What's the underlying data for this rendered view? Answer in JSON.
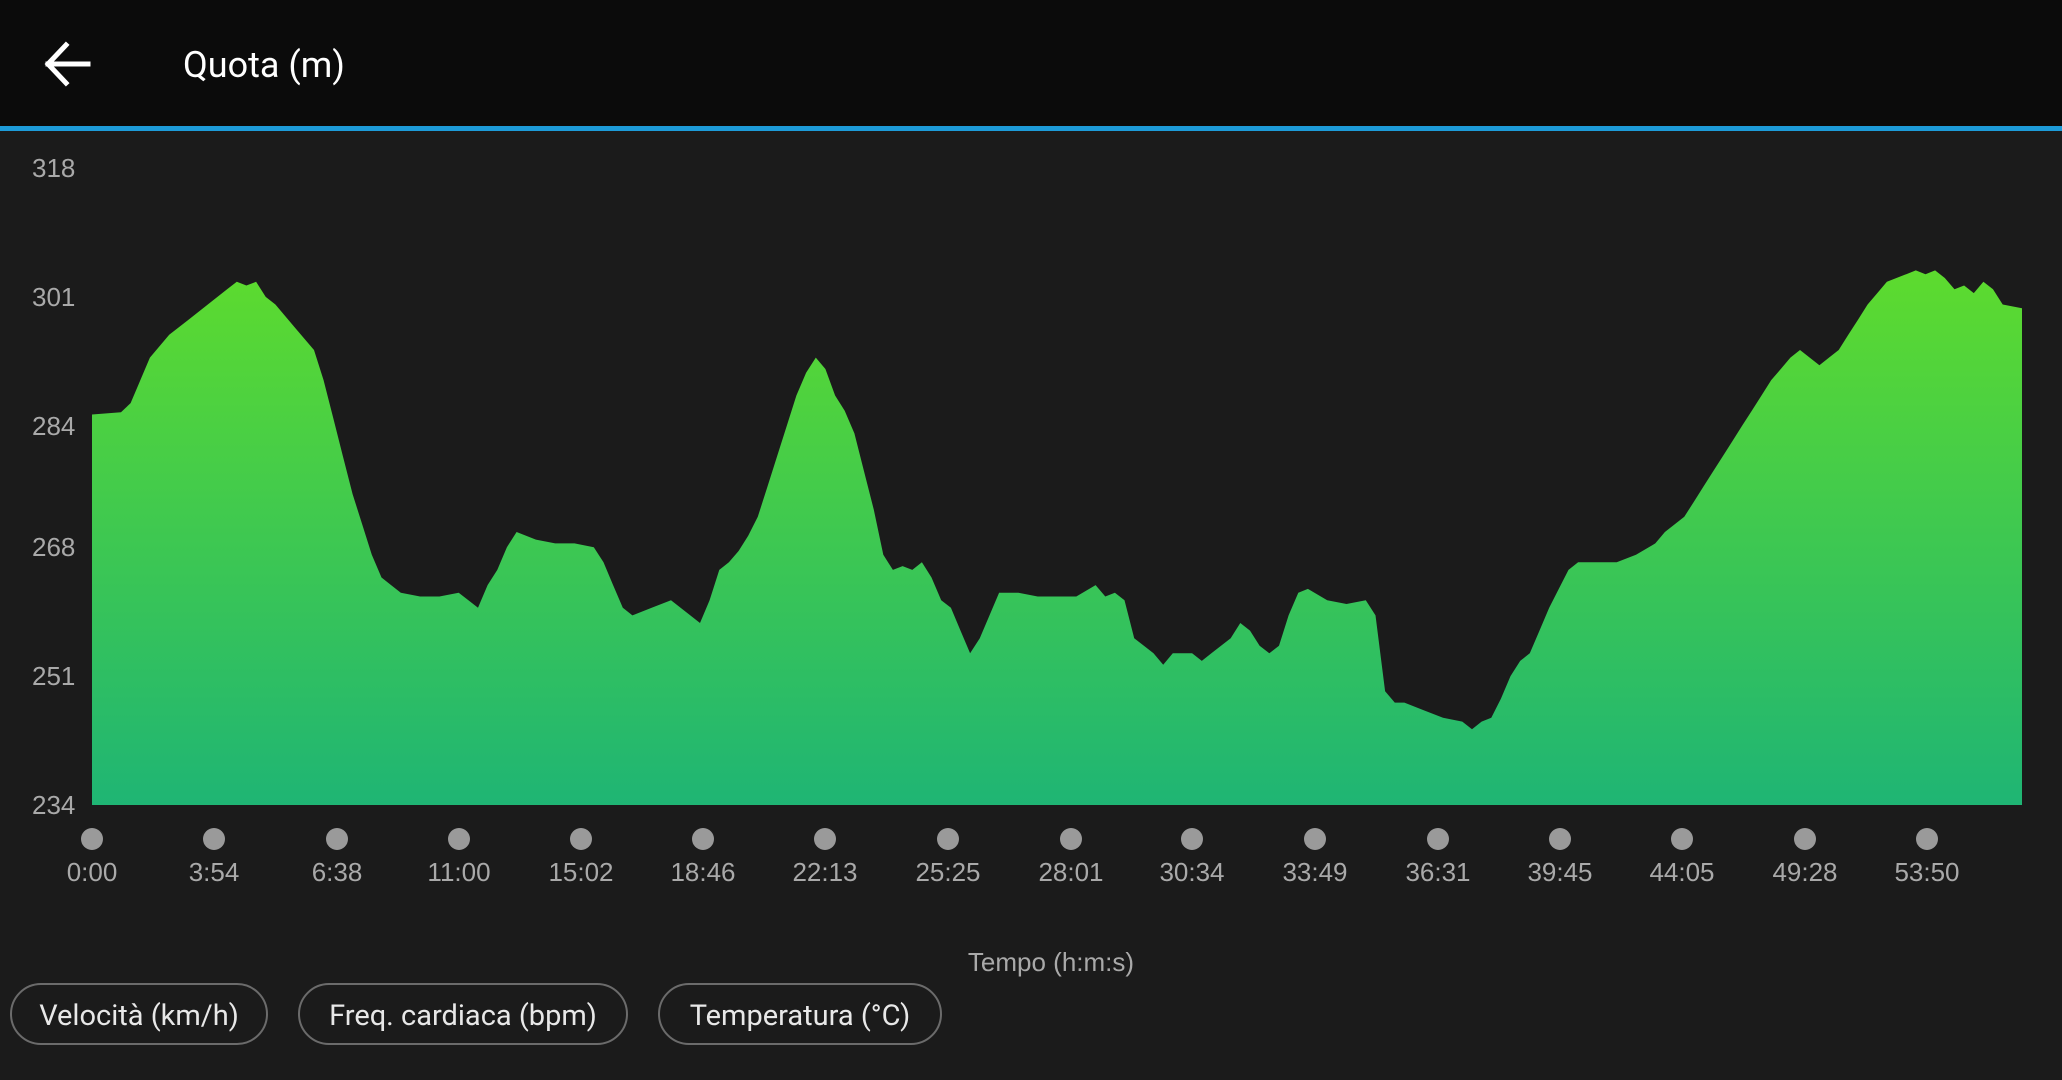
{
  "header": {
    "title": "Quota (m)",
    "back_icon": "arrow-left-icon"
  },
  "colors": {
    "header_bg": "#0b0b0b",
    "accent": "#1d9bd8",
    "background": "#1b1b1b",
    "area_top": "#5ddb2e",
    "area_bottom": "#1fb574",
    "marker": "#9a9a9a",
    "axis_text": "#a9a9a9"
  },
  "chart_data": {
    "type": "area",
    "xlabel": "Tempo (h:m:s)",
    "ylabel": "",
    "ylim": [
      234,
      318
    ],
    "yticks": [
      "318",
      "301",
      "284",
      "268",
      "251",
      "234"
    ],
    "xticks": [
      "0:00",
      "3:54",
      "6:38",
      "11:00",
      "15:02",
      "18:46",
      "22:13",
      "25:25",
      "28:01",
      "30:34",
      "33:49",
      "36:31",
      "39:45",
      "44:05",
      "49:28",
      "53:50"
    ],
    "grid": false,
    "series": [
      {
        "name": "",
        "points": [
          [
            0,
            285.5
          ],
          [
            0.015,
            285.8
          ],
          [
            0.02,
            287
          ],
          [
            0.025,
            290
          ],
          [
            0.03,
            293
          ],
          [
            0.04,
            296
          ],
          [
            0.05,
            298
          ],
          [
            0.06,
            300
          ],
          [
            0.07,
            302
          ],
          [
            0.075,
            303
          ],
          [
            0.08,
            302.5
          ],
          [
            0.085,
            303
          ],
          [
            0.09,
            301
          ],
          [
            0.095,
            300
          ],
          [
            0.1,
            298.5
          ],
          [
            0.105,
            297
          ],
          [
            0.11,
            295.5
          ],
          [
            0.115,
            294
          ],
          [
            0.12,
            290
          ],
          [
            0.125,
            285
          ],
          [
            0.13,
            280
          ],
          [
            0.135,
            275
          ],
          [
            0.14,
            271
          ],
          [
            0.145,
            267
          ],
          [
            0.15,
            264
          ],
          [
            0.155,
            263
          ],
          [
            0.16,
            262
          ],
          [
            0.17,
            261.5
          ],
          [
            0.18,
            261.5
          ],
          [
            0.19,
            262
          ],
          [
            0.195,
            261
          ],
          [
            0.2,
            260
          ],
          [
            0.205,
            263
          ],
          [
            0.21,
            265
          ],
          [
            0.215,
            268
          ],
          [
            0.22,
            270
          ],
          [
            0.23,
            269
          ],
          [
            0.24,
            268.5
          ],
          [
            0.25,
            268.5
          ],
          [
            0.26,
            268
          ],
          [
            0.265,
            266
          ],
          [
            0.27,
            263
          ],
          [
            0.275,
            260
          ],
          [
            0.28,
            259
          ],
          [
            0.29,
            260
          ],
          [
            0.3,
            261
          ],
          [
            0.31,
            259
          ],
          [
            0.315,
            258
          ],
          [
            0.32,
            261
          ],
          [
            0.325,
            265
          ],
          [
            0.33,
            266
          ],
          [
            0.335,
            267.5
          ],
          [
            0.34,
            269.5
          ],
          [
            0.345,
            272
          ],
          [
            0.35,
            276
          ],
          [
            0.355,
            280
          ],
          [
            0.36,
            284
          ],
          [
            0.365,
            288
          ],
          [
            0.37,
            291
          ],
          [
            0.375,
            293
          ],
          [
            0.38,
            291.5
          ],
          [
            0.385,
            288
          ],
          [
            0.39,
            286
          ],
          [
            0.395,
            283
          ],
          [
            0.4,
            278
          ],
          [
            0.405,
            273
          ],
          [
            0.41,
            267
          ],
          [
            0.415,
            265
          ],
          [
            0.42,
            265.5
          ],
          [
            0.425,
            265
          ],
          [
            0.43,
            266
          ],
          [
            0.435,
            264
          ],
          [
            0.44,
            261
          ],
          [
            0.445,
            260
          ],
          [
            0.45,
            257
          ],
          [
            0.455,
            254
          ],
          [
            0.46,
            256
          ],
          [
            0.465,
            259
          ],
          [
            0.47,
            262
          ],
          [
            0.48,
            262
          ],
          [
            0.49,
            261.5
          ],
          [
            0.5,
            261.5
          ],
          [
            0.51,
            261.5
          ],
          [
            0.52,
            263
          ],
          [
            0.525,
            261.5
          ],
          [
            0.53,
            262
          ],
          [
            0.535,
            261
          ],
          [
            0.54,
            256
          ],
          [
            0.545,
            255
          ],
          [
            0.55,
            254
          ],
          [
            0.555,
            252.5
          ],
          [
            0.56,
            254
          ],
          [
            0.57,
            254
          ],
          [
            0.575,
            253
          ],
          [
            0.58,
            254
          ],
          [
            0.59,
            256
          ],
          [
            0.595,
            258
          ],
          [
            0.6,
            257
          ],
          [
            0.605,
            255
          ],
          [
            0.61,
            254
          ],
          [
            0.615,
            255
          ],
          [
            0.62,
            259
          ],
          [
            0.625,
            262
          ],
          [
            0.63,
            262.5
          ],
          [
            0.64,
            261
          ],
          [
            0.65,
            260.5
          ],
          [
            0.66,
            261
          ],
          [
            0.665,
            259
          ],
          [
            0.67,
            249
          ],
          [
            0.675,
            247.5
          ],
          [
            0.68,
            247.5
          ],
          [
            0.69,
            246.5
          ],
          [
            0.7,
            245.5
          ],
          [
            0.71,
            245
          ],
          [
            0.715,
            244
          ],
          [
            0.72,
            245
          ],
          [
            0.725,
            245.5
          ],
          [
            0.73,
            248
          ],
          [
            0.735,
            251
          ],
          [
            0.74,
            253
          ],
          [
            0.745,
            254
          ],
          [
            0.75,
            257
          ],
          [
            0.755,
            260
          ],
          [
            0.76,
            262.5
          ],
          [
            0.765,
            265
          ],
          [
            0.77,
            266
          ],
          [
            0.78,
            266
          ],
          [
            0.79,
            266
          ],
          [
            0.8,
            267
          ],
          [
            0.81,
            268.5
          ],
          [
            0.815,
            270
          ],
          [
            0.82,
            271
          ],
          [
            0.825,
            272
          ],
          [
            0.83,
            274
          ],
          [
            0.835,
            276
          ],
          [
            0.84,
            278
          ],
          [
            0.845,
            280
          ],
          [
            0.85,
            282
          ],
          [
            0.855,
            284
          ],
          [
            0.86,
            286
          ],
          [
            0.865,
            288
          ],
          [
            0.87,
            290
          ],
          [
            0.875,
            291.5
          ],
          [
            0.88,
            293
          ],
          [
            0.885,
            294
          ],
          [
            0.89,
            293
          ],
          [
            0.895,
            292
          ],
          [
            0.9,
            293
          ],
          [
            0.905,
            294
          ],
          [
            0.91,
            296
          ],
          [
            0.915,
            298
          ],
          [
            0.92,
            300
          ],
          [
            0.925,
            301.5
          ],
          [
            0.93,
            303
          ],
          [
            0.94,
            304
          ],
          [
            0.945,
            304.5
          ],
          [
            0.95,
            304
          ],
          [
            0.955,
            304.5
          ],
          [
            0.96,
            303.5
          ],
          [
            0.965,
            302
          ],
          [
            0.97,
            302.5
          ],
          [
            0.975,
            301.5
          ],
          [
            0.98,
            303
          ],
          [
            0.985,
            302
          ],
          [
            0.99,
            300
          ],
          [
            1.0,
            299.5
          ]
        ]
      }
    ]
  },
  "chips": [
    {
      "label": "Velocità (km/h)"
    },
    {
      "label": "Freq. cardiaca (bpm)"
    },
    {
      "label": "Temperatura (°C)"
    }
  ]
}
